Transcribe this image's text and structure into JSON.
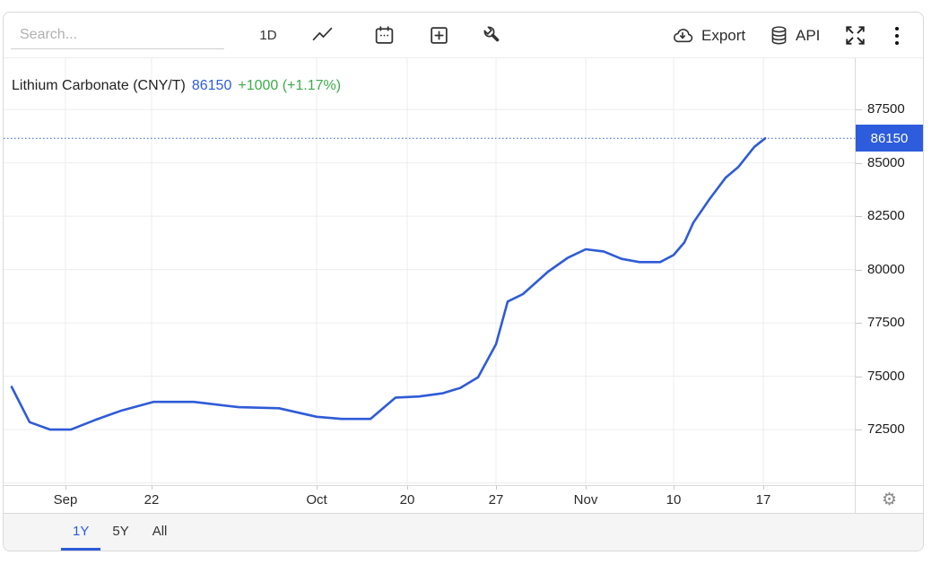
{
  "colors": {
    "accent": "#2d5cdc",
    "line": "#2f5bd7",
    "green": "#3cab4a",
    "grid": "#ededed",
    "icon": "#333333"
  },
  "toolbar": {
    "search": {
      "placeholder": "Search..."
    },
    "interval_button": "1D",
    "export_button": "Export",
    "api_button": "API",
    "icons": {
      "chart_type": "line-chart-icon",
      "calendar": "calendar-icon",
      "compare": "add-compare-icon",
      "tools": "wrench-icon",
      "export": "cloud-download-icon",
      "api": "database-icon",
      "fullscreen": "fullscreen-icon",
      "menu": "kebab-menu-icon"
    }
  },
  "header": {
    "title": "Lithium Carbonate (CNY/T)",
    "price": "86150",
    "change": "+1000 (+1.17%)"
  },
  "chart_data": {
    "type": "line",
    "title": "Lithium Carbonate (CNY/T)",
    "unit": "CNY/T",
    "current_price": 86150,
    "current_price_label": "86150",
    "change_abs": 1000,
    "change_pct": 1.17,
    "grid": true,
    "legend": false,
    "ylim": [
      69900,
      89900
    ],
    "y_tick_labels": [
      87500,
      85000,
      82500,
      80000,
      77500,
      75000,
      72500
    ],
    "y_gridlines": [
      87500,
      85000,
      82500,
      80000,
      77500,
      75000,
      72500,
      70000
    ],
    "x_ticks": [
      {
        "label": "Sep",
        "f": 0.0727
      },
      {
        "label": "22",
        "f": 0.1739
      },
      {
        "label": "Oct",
        "f": 0.3678
      },
      {
        "label": "20",
        "f": 0.4742
      },
      {
        "label": "27",
        "f": 0.5785
      },
      {
        "label": "Nov",
        "f": 0.6839
      },
      {
        "label": "10",
        "f": 0.7871
      },
      {
        "label": "17",
        "f": 0.8925
      }
    ],
    "series": [
      {
        "name": "Lithium Carbonate (CNY/T)",
        "points": [
          [
            0.0095,
            74500
          ],
          [
            0.0306,
            72850
          ],
          [
            0.0548,
            72500
          ],
          [
            0.079,
            72500
          ],
          [
            0.1075,
            72950
          ],
          [
            0.1391,
            73400
          ],
          [
            0.176,
            73800
          ],
          [
            0.2234,
            73800
          ],
          [
            0.2761,
            73550
          ],
          [
            0.3235,
            73500
          ],
          [
            0.3678,
            73100
          ],
          [
            0.3973,
            73000
          ],
          [
            0.431,
            73000
          ],
          [
            0.4605,
            74000
          ],
          [
            0.4879,
            74050
          ],
          [
            0.5153,
            74200
          ],
          [
            0.5364,
            74450
          ],
          [
            0.5574,
            74950
          ],
          [
            0.5785,
            76500
          ],
          [
            0.5922,
            78500
          ],
          [
            0.6101,
            78850
          ],
          [
            0.6396,
            79900
          ],
          [
            0.6628,
            80550
          ],
          [
            0.6839,
            80950
          ],
          [
            0.705,
            80850
          ],
          [
            0.726,
            80500
          ],
          [
            0.7471,
            80350
          ],
          [
            0.7713,
            80350
          ],
          [
            0.7871,
            80680
          ],
          [
            0.7998,
            81270
          ],
          [
            0.8103,
            82200
          ],
          [
            0.8293,
            83300
          ],
          [
            0.8482,
            84300
          ],
          [
            0.863,
            84800
          ],
          [
            0.882,
            85750
          ],
          [
            0.8946,
            86150
          ]
        ]
      }
    ]
  },
  "axis_pane": {
    "gear_glyph": "⚙"
  },
  "tabs": {
    "items": [
      {
        "label": "1Y",
        "active": true
      },
      {
        "label": "5Y",
        "active": false
      },
      {
        "label": "All",
        "active": false
      }
    ]
  }
}
